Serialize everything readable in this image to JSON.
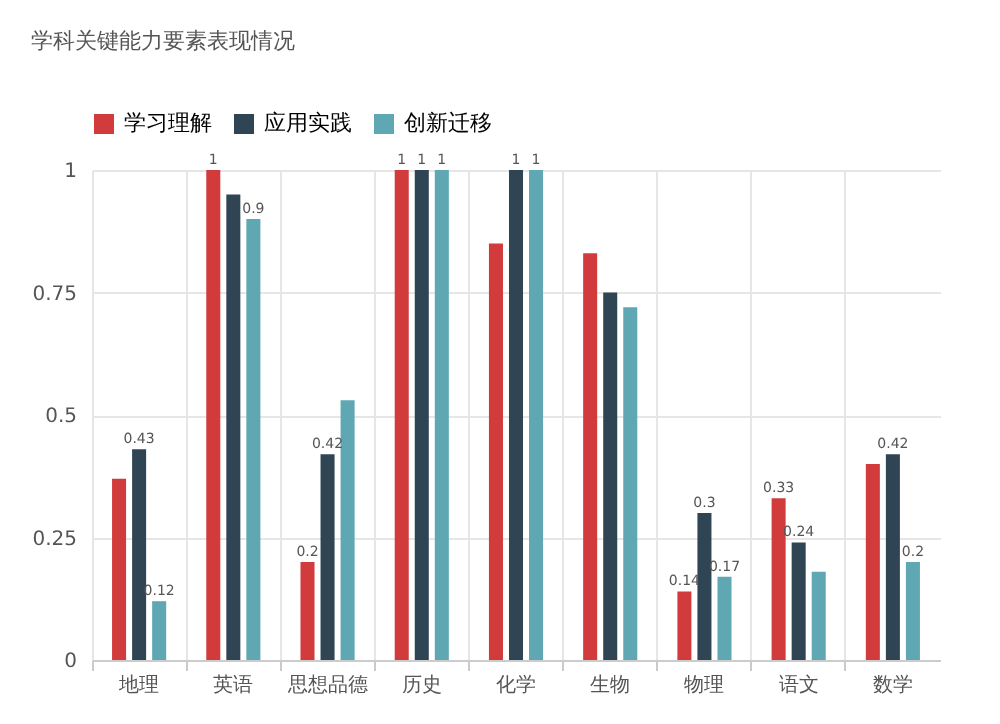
{
  "chart_data": {
    "type": "bar",
    "title": "学科关键能力要素表现情况",
    "categories": [
      "地理",
      "英语",
      "思想品德",
      "历史",
      "化学",
      "生物",
      "物理",
      "语文",
      "数学"
    ],
    "series": [
      {
        "name": "学习理解",
        "color": "#d23b3b",
        "values": [
          0.37,
          1,
          0.2,
          1,
          0.85,
          0.83,
          0.14,
          0.33,
          0.4
        ],
        "value_labels": [
          null,
          "1",
          "0.2",
          "1",
          null,
          null,
          "0.14",
          "0.33",
          null
        ]
      },
      {
        "name": "应用实践",
        "color": "#2f4554",
        "values": [
          0.43,
          0.95,
          0.42,
          1,
          1,
          0.75,
          0.3,
          0.24,
          0.42
        ],
        "value_labels": [
          "0.43",
          null,
          "0.42",
          "1",
          "1",
          null,
          "0.3",
          "0.24",
          "0.42"
        ]
      },
      {
        "name": "创新迁移",
        "color": "#5fa8b3",
        "values": [
          0.12,
          0.9,
          0.53,
          1,
          1,
          0.72,
          0.17,
          0.18,
          0.2
        ],
        "value_labels": [
          "0.12",
          "0.9",
          null,
          "1",
          "1",
          null,
          "0.17",
          null,
          "0.2"
        ]
      }
    ],
    "ylim": [
      0,
      1
    ],
    "yticks": [
      0,
      0.25,
      0.5,
      0.75,
      1
    ],
    "grid": true,
    "legend": "top"
  }
}
